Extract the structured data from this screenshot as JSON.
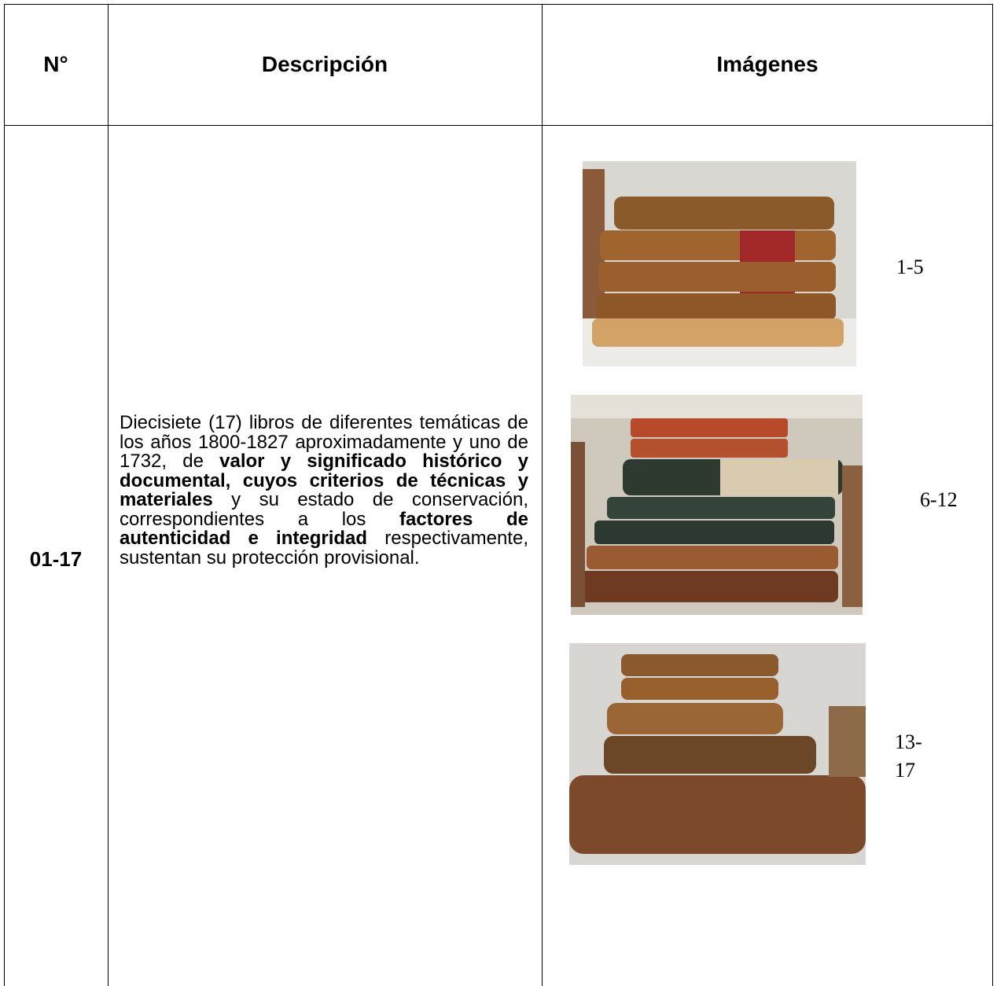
{
  "table": {
    "header": [
      "N°",
      "Descripción",
      "Imágenes"
    ],
    "rows": [
      {
        "number": "01-17",
        "description": [
          {
            "text": "Diecisiete (17) libros de diferentes temáticas de los años 1800-1827 aproximadamente y uno de 1732, de ",
            "bold": false
          },
          {
            "text": "valor y significado histórico y documental, cuyos criterios de técnicas y materiales",
            "bold": true
          },
          {
            "text": " y su estado de conservación, correspondientes a los ",
            "bold": false
          },
          {
            "text": "factores de autenticidad e integridad",
            "bold": true
          },
          {
            "text": " respectivamente, sustentan su protección provisional.",
            "bold": false
          }
        ],
        "images": [
          "1-5",
          "6-12",
          "13-17"
        ]
      }
    ]
  }
}
